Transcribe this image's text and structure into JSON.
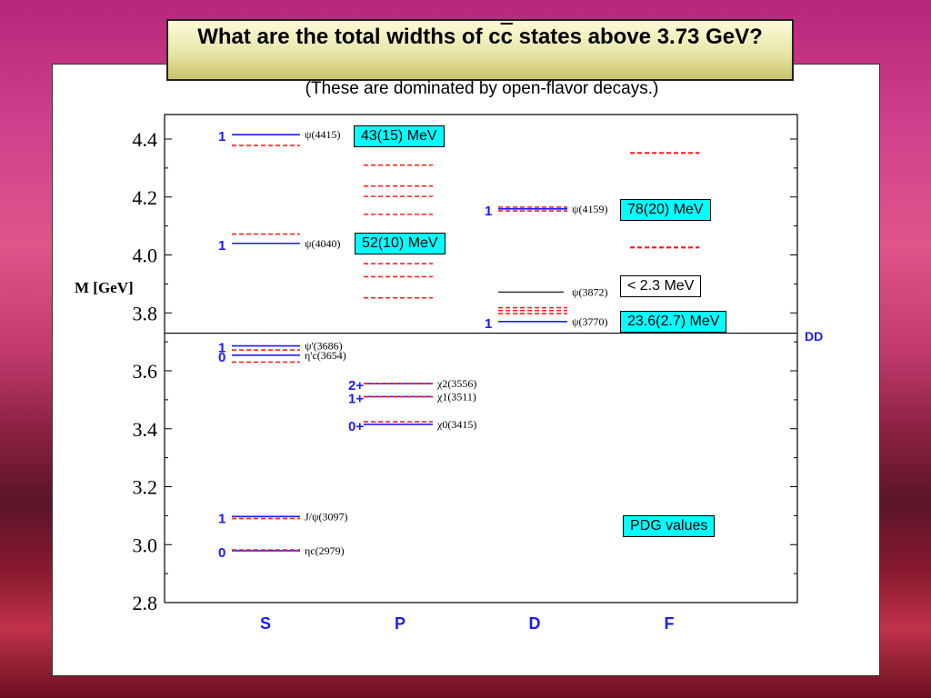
{
  "slide": {
    "title_part1": "What are the total widths of c",
    "title_cbar": "c",
    "title_part2": " states above 3.73 GeV?",
    "subtitle": "(These are dominated by open-flavor decays.)"
  },
  "annotations": {
    "psi4415_width": "43(15) MeV",
    "psi4040_width": "52(10) MeV",
    "psi4159_width": "78(20) MeV",
    "x3872_width": "< 2.3 MeV",
    "psi3770_width": "23.6(2.7) MeV",
    "pdg": "PDG values"
  },
  "colors": {
    "measured": "#1a1aff",
    "predicted": "#ff2020",
    "accent_box": "#00ffff"
  },
  "chart_data": {
    "type": "level-diagram",
    "ylabel": "M [GeV]",
    "ylim": [
      2.8,
      4.5
    ],
    "yticks": [
      "2.8",
      "3.0",
      "3.2",
      "3.4",
      "3.6",
      "3.8",
      "4.0",
      "4.2",
      "4.4"
    ],
    "categories": [
      "S",
      "P",
      "D",
      "F"
    ],
    "threshold": {
      "label": "DD",
      "mass": 3.73
    },
    "states": [
      {
        "col": "S",
        "jp": "0",
        "name": "ηc(2979)",
        "mass": 2.979,
        "pred": 2.982
      },
      {
        "col": "S",
        "jp": "1",
        "name": "J/ψ(3097)",
        "mass": 3.097,
        "pred": 3.09
      },
      {
        "col": "S",
        "jp": "0",
        "name": "η'c(3654)",
        "mass": 3.654,
        "pred": 3.63
      },
      {
        "col": "S",
        "jp": "1",
        "name": "ψ'(3686)",
        "mass": 3.686,
        "pred": 3.672
      },
      {
        "col": "S",
        "jp": "1",
        "name": "ψ(4040)",
        "mass": 4.04,
        "pred": 4.072
      },
      {
        "col": "S",
        "jp": "1",
        "name": "ψ(4415)",
        "mass": 4.415,
        "pred": 4.378
      },
      {
        "col": "P",
        "jp": "0+",
        "name": "χ0(3415)",
        "mass": 3.415,
        "pred": 3.424
      },
      {
        "col": "P",
        "jp": "1+",
        "name": "χ1(3511)",
        "mass": 3.511,
        "pred": 3.51
      },
      {
        "col": "P",
        "jp": "2+",
        "name": "χ2(3556)",
        "mass": 3.556,
        "pred": 3.556
      },
      {
        "col": "D",
        "jp": "1",
        "name": "ψ(3770)",
        "mass": 3.77,
        "pred": 3.798
      },
      {
        "col": "D",
        "jp": "",
        "name": "ψ(3872)",
        "mass": 3.872
      },
      {
        "col": "D",
        "jp": "1",
        "name": "ψ(4159)",
        "mass": 4.159,
        "pred": 4.165
      }
    ],
    "predicted_only": [
      {
        "col": "P",
        "masses": [
          3.852,
          3.925,
          3.97,
          4.01,
          4.14,
          4.202,
          4.238,
          4.31
        ]
      },
      {
        "col": "D",
        "masses": [
          3.808,
          3.818,
          4.152
        ]
      },
      {
        "col": "F",
        "masses": [
          4.026,
          4.352
        ]
      }
    ]
  }
}
